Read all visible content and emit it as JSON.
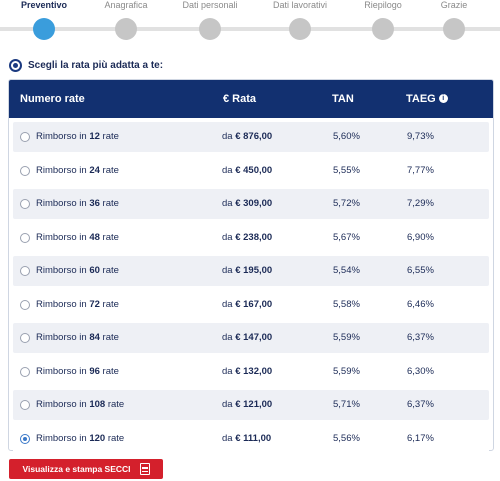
{
  "stepper": {
    "steps": [
      {
        "label": "Preventivo",
        "active": true
      },
      {
        "label": "Anagrafica",
        "active": false
      },
      {
        "label": "Dati personali",
        "active": false
      },
      {
        "label": "Dati lavorativi",
        "active": false
      },
      {
        "label": "Riepilogo",
        "active": false
      },
      {
        "label": "Grazie",
        "active": false
      }
    ]
  },
  "heading": {
    "icon": "target-icon",
    "text": "Scegli la rata più adatta a te:"
  },
  "table": {
    "headers": {
      "numero_rate": "Numero rate",
      "rata": "€ Rata",
      "tan": "TAN",
      "taeg": "TAEG",
      "taeg_icon": "info-icon",
      "taeg_icon_glyph": "i"
    },
    "rows": [
      {
        "prefix": "Rimborso in",
        "count": "12",
        "suffix": "rate",
        "da": "da",
        "amount": "€ 876,00",
        "tan": "5,60%",
        "taeg": "9,73%",
        "selected": false
      },
      {
        "prefix": "Rimborso in",
        "count": "24",
        "suffix": "rate",
        "da": "da",
        "amount": "€ 450,00",
        "tan": "5,55%",
        "taeg": "7,77%",
        "selected": false
      },
      {
        "prefix": "Rimborso in",
        "count": "36",
        "suffix": "rate",
        "da": "da",
        "amount": "€ 309,00",
        "tan": "5,72%",
        "taeg": "7,29%",
        "selected": false
      },
      {
        "prefix": "Rimborso in",
        "count": "48",
        "suffix": "rate",
        "da": "da",
        "amount": "€ 238,00",
        "tan": "5,67%",
        "taeg": "6,90%",
        "selected": false
      },
      {
        "prefix": "Rimborso in",
        "count": "60",
        "suffix": "rate",
        "da": "da",
        "amount": "€ 195,00",
        "tan": "5,54%",
        "taeg": "6,55%",
        "selected": false
      },
      {
        "prefix": "Rimborso in",
        "count": "72",
        "suffix": "rate",
        "da": "da",
        "amount": "€ 167,00",
        "tan": "5,58%",
        "taeg": "6,46%",
        "selected": false
      },
      {
        "prefix": "Rimborso in",
        "count": "84",
        "suffix": "rate",
        "da": "da",
        "amount": "€ 147,00",
        "tan": "5,59%",
        "taeg": "6,37%",
        "selected": false
      },
      {
        "prefix": "Rimborso in",
        "count": "96",
        "suffix": "rate",
        "da": "da",
        "amount": "€ 132,00",
        "tan": "5,59%",
        "taeg": "6,30%",
        "selected": false
      },
      {
        "prefix": "Rimborso in",
        "count": "108",
        "suffix": "rate",
        "da": "da",
        "amount": "€ 121,00",
        "tan": "5,71%",
        "taeg": "6,37%",
        "selected": false
      },
      {
        "prefix": "Rimborso in",
        "count": "120",
        "suffix": "rate",
        "da": "da",
        "amount": "€ 111,00",
        "tan": "5,56%",
        "taeg": "6,17%",
        "selected": true
      }
    ]
  },
  "secci_button": {
    "label": "Visualizza e stampa SECCI",
    "icon": "pdf-icon"
  },
  "colors": {
    "header_bg": "#123070",
    "active_step": "#3a9ddc",
    "inactive_step": "#c6c6c6",
    "row_alt": "#eef0f5",
    "button_red": "#d4202c",
    "text_navy": "#1b2a56"
  }
}
